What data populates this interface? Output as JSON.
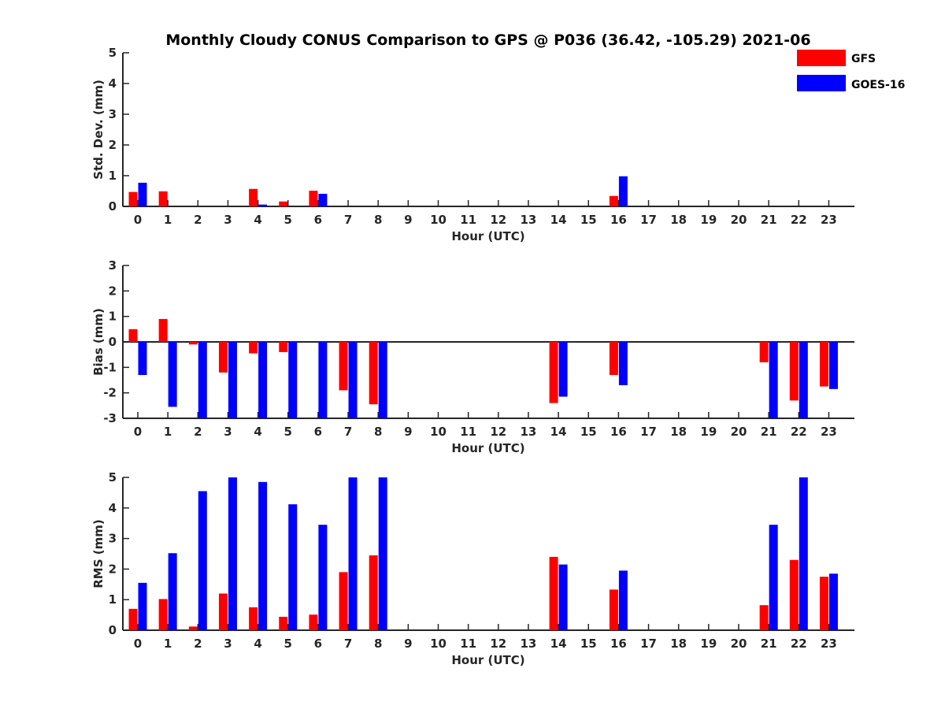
{
  "title": "Monthly Cloudy CONUS Comparison to GPS @ P036 (36.42, -105.29) 2021-06",
  "legend": [
    {
      "name": "GFS",
      "color": "#ff0000"
    },
    {
      "name": "GOES-16",
      "color": "#0000ff"
    }
  ],
  "chart_data": [
    {
      "type": "bar",
      "title": "Monthly Cloudy CONUS Comparison to GPS @ P036 (36.42, -105.29) 2021-06",
      "xlabel": "Hour (UTC)",
      "ylabel": "Std. Dev. (mm)",
      "ylim": [
        0,
        5
      ],
      "yticks": [
        "0",
        "1",
        "2",
        "3",
        "4",
        "5"
      ],
      "categories": [
        "0",
        "1",
        "2",
        "3",
        "4",
        "5",
        "6",
        "7",
        "8",
        "9",
        "10",
        "11",
        "12",
        "13",
        "14",
        "15",
        "16",
        "17",
        "18",
        "19",
        "20",
        "21",
        "22",
        "23"
      ],
      "series": [
        {
          "name": "GFS",
          "color": "#ff0000",
          "values": [
            0.47,
            0.49,
            null,
            null,
            0.57,
            0.16,
            0.51,
            null,
            null,
            null,
            null,
            null,
            null,
            null,
            null,
            null,
            0.34,
            null,
            null,
            null,
            null,
            null,
            null,
            null
          ]
        },
        {
          "name": "GOES-16",
          "color": "#0000ff",
          "values": [
            0.77,
            null,
            null,
            null,
            0.06,
            null,
            0.41,
            null,
            null,
            null,
            null,
            null,
            null,
            null,
            null,
            null,
            0.98,
            null,
            null,
            null,
            null,
            null,
            null,
            null
          ]
        }
      ]
    },
    {
      "type": "bar",
      "xlabel": "Hour (UTC)",
      "ylabel": "Bias (mm)",
      "ylim": [
        -3,
        3
      ],
      "yticks": [
        "-3",
        "-2",
        "-1",
        "0",
        "1",
        "2",
        "3"
      ],
      "categories": [
        "0",
        "1",
        "2",
        "3",
        "4",
        "5",
        "6",
        "7",
        "8",
        "9",
        "10",
        "11",
        "12",
        "13",
        "14",
        "15",
        "16",
        "17",
        "18",
        "19",
        "20",
        "21",
        "22",
        "23"
      ],
      "series": [
        {
          "name": "GFS",
          "color": "#ff0000",
          "values": [
            0.5,
            0.9,
            -0.1,
            -1.2,
            -0.45,
            -0.4,
            null,
            -1.9,
            -2.45,
            null,
            null,
            null,
            null,
            null,
            -2.4,
            null,
            -1.3,
            null,
            null,
            null,
            null,
            -0.8,
            -2.3,
            -1.75
          ]
        },
        {
          "name": "GOES-16",
          "color": "#0000ff",
          "values": [
            -1.3,
            -2.55,
            -3.0,
            -3.0,
            -3.0,
            -3.0,
            -3.0,
            -3.0,
            -3.0,
            null,
            null,
            null,
            null,
            null,
            -2.15,
            null,
            -1.7,
            null,
            null,
            null,
            null,
            -3.0,
            -3.0,
            -1.85
          ]
        }
      ]
    },
    {
      "type": "bar",
      "xlabel": "Hour (UTC)",
      "ylabel": "RMS (mm)",
      "ylim": [
        0,
        5
      ],
      "yticks": [
        "0",
        "1",
        "2",
        "3",
        "4",
        "5"
      ],
      "categories": [
        "0",
        "1",
        "2",
        "3",
        "4",
        "5",
        "6",
        "7",
        "8",
        "9",
        "10",
        "11",
        "12",
        "13",
        "14",
        "15",
        "16",
        "17",
        "18",
        "19",
        "20",
        "21",
        "22",
        "23"
      ],
      "series": [
        {
          "name": "GFS",
          "color": "#ff0000",
          "values": [
            0.7,
            1.02,
            0.12,
            1.2,
            0.75,
            0.44,
            0.51,
            1.9,
            2.45,
            null,
            null,
            null,
            null,
            null,
            2.4,
            null,
            1.33,
            null,
            null,
            null,
            null,
            0.82,
            2.3,
            1.75
          ]
        },
        {
          "name": "GOES-16",
          "color": "#0000ff",
          "values": [
            1.55,
            2.52,
            4.55,
            5.0,
            4.85,
            4.12,
            3.45,
            5.0,
            5.0,
            null,
            null,
            null,
            null,
            null,
            2.15,
            null,
            1.95,
            null,
            null,
            null,
            null,
            3.45,
            5.0,
            1.85
          ]
        }
      ]
    }
  ]
}
